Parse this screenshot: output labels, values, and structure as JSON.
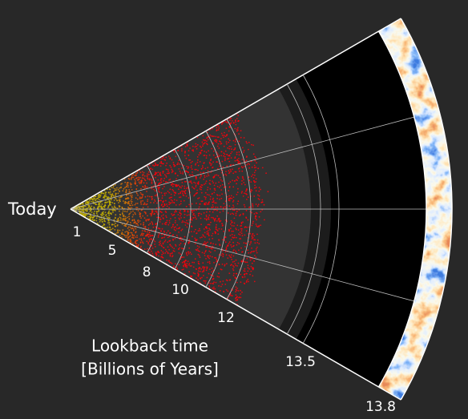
{
  "start_label": "Today",
  "lookback_ticks": [
    1,
    5,
    8,
    10,
    12,
    13.5,
    13.8
  ],
  "axis_title": [
    "Lookback time",
    "[Billions of Years]"
  ]
}
